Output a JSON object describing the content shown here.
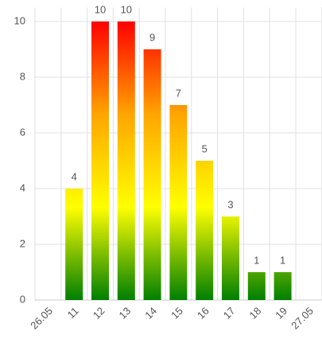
{
  "chart_data": {
    "type": "bar",
    "categories": [
      "26.05",
      "11",
      "12",
      "13",
      "14",
      "15",
      "16",
      "17",
      "18",
      "19",
      "27.05"
    ],
    "values": [
      null,
      4,
      10,
      10,
      9,
      7,
      5,
      3,
      1,
      1,
      null
    ],
    "colors": [
      "#007f00",
      "#ffff00",
      "#ffa500",
      "#ff0000"
    ],
    "ylim": [
      0,
      10.5
    ],
    "yticks": [
      0,
      2,
      4,
      6,
      8,
      10
    ],
    "grid": true
  }
}
